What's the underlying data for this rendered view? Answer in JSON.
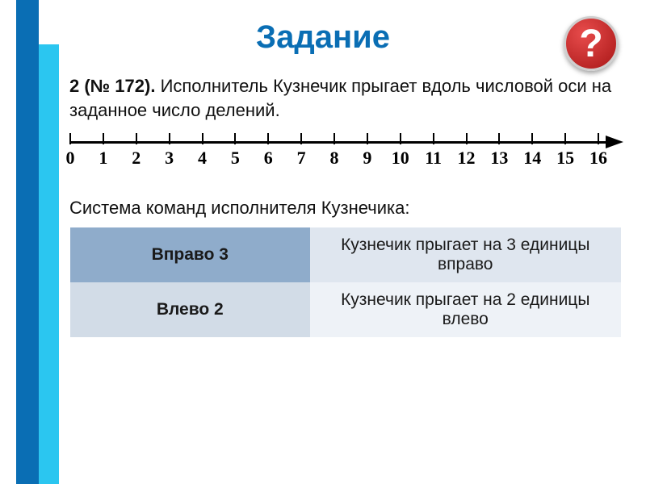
{
  "colors": {
    "vbar_dark": "#0a6eb4",
    "vbar_light": "#2bc6f0",
    "title": "#0a6eb4",
    "badge_gradient_light": "#e84c4c",
    "badge_gradient_dark": "#a81616",
    "badge_border": "#cfcfcf",
    "table_header_bg": "#8faccb",
    "table_row1_bg": "#dfe6ef",
    "table_cmd2_bg": "#d2dce7",
    "table_row2_bg": "#eef2f7",
    "text": "#111111"
  },
  "help_badge": "?",
  "title": "Задание",
  "task": {
    "prefix_bold": "2 (№ 172).",
    "body": " Исполнитель Кузнечик прыгает вдоль числовой оси на заданное число делений."
  },
  "numberline": {
    "min": 0,
    "max": 16,
    "ticks": [
      "0",
      "1",
      "2",
      "3",
      "4",
      "5",
      "6",
      "7",
      "8",
      "9",
      "10",
      "11",
      "12",
      "13",
      "14",
      "15",
      "16"
    ]
  },
  "subhead": "Система команд исполнителя Кузнечика:",
  "commands": {
    "row1": {
      "cmd": "Вправо 3",
      "desc": "Кузнечик прыгает на 3 единицы вправо"
    },
    "row2": {
      "cmd": "Влево 2",
      "desc": "Кузнечик прыгает на 2 единицы влево"
    }
  }
}
